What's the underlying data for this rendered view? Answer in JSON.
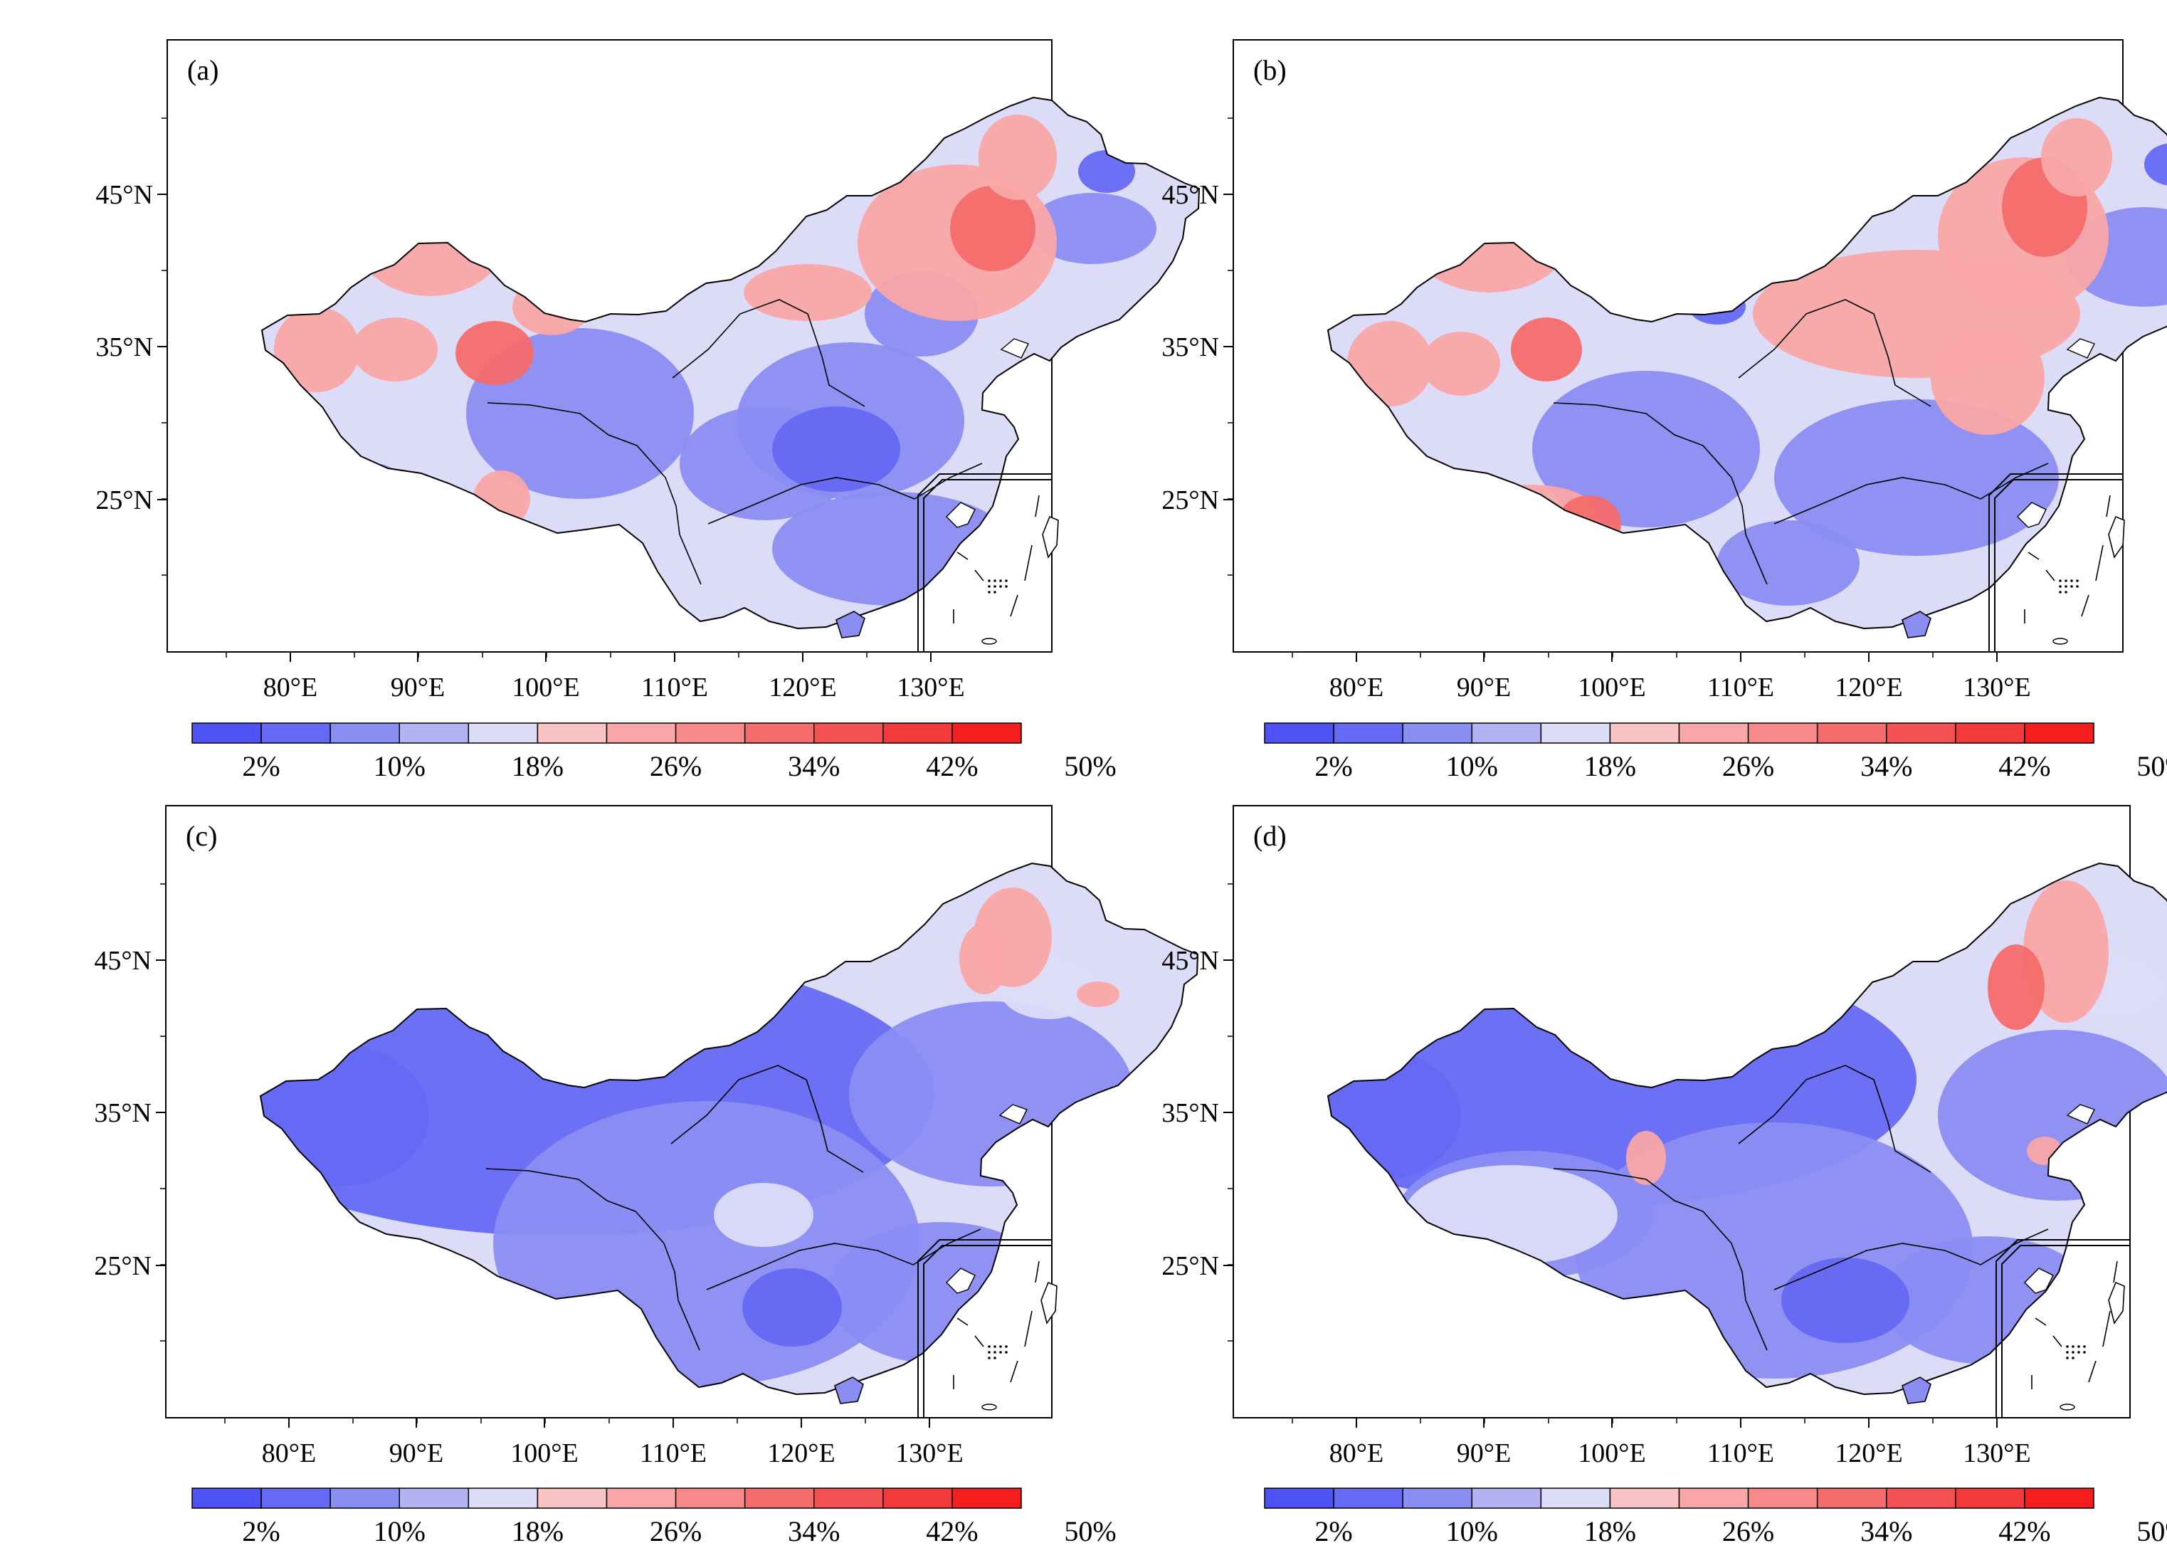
{
  "figure": {
    "panels": [
      {
        "label": "(a)",
        "lat_labels": [
          "45°N",
          "35°N",
          "25°N"
        ],
        "lon_labels": [
          "80°E",
          "90°E",
          "100°E",
          "110°E",
          "120°E",
          "130°E"
        ]
      },
      {
        "label": "(b)",
        "lat_labels": [
          "45°N",
          "35°N",
          "25°N"
        ],
        "lon_labels": [
          "80°E",
          "90°E",
          "100°E",
          "110°E",
          "120°E",
          "130°E"
        ]
      },
      {
        "label": "(c)",
        "lat_labels": [
          "45°N",
          "35°N",
          "25°N"
        ],
        "lon_labels": [
          "80°E",
          "90°E",
          "100°E",
          "110°E",
          "120°E",
          "130°E"
        ]
      },
      {
        "label": "(d)",
        "lat_labels": [
          "45°N",
          "35°N",
          "25°N"
        ],
        "lon_labels": [
          "80°E",
          "90°E",
          "100°E",
          "110°E",
          "120°E",
          "130°E"
        ]
      }
    ],
    "colorbar": {
      "tick_labels": [
        "2%",
        "10%",
        "18%",
        "26%",
        "34%",
        "42%",
        "50%"
      ],
      "colors": [
        "#4f53f5",
        "#6569f3",
        "#8a8df2",
        "#b1b3f3",
        "#dcdcf8",
        "#fbc4c4",
        "#f9a6a6",
        "#f78989",
        "#f56c6c",
        "#f45252",
        "#f33a3a",
        "#f41e1e"
      ]
    },
    "palette": {
      "low": "#dcdcf8",
      "mid": "#8a8df2",
      "high": "#6569f3",
      "warm": "#f9a6a6",
      "hot": "#f56c6c"
    }
  }
}
